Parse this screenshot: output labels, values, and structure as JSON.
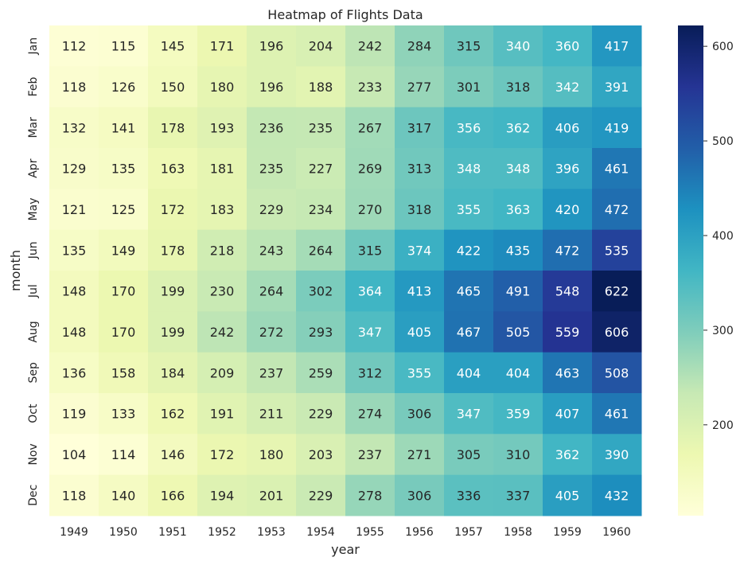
{
  "chart_data": {
    "type": "heatmap",
    "title": "Heatmap of Flights Data",
    "xlabel": "year",
    "ylabel": "month",
    "x_categories": [
      "1949",
      "1950",
      "1951",
      "1952",
      "1953",
      "1954",
      "1955",
      "1956",
      "1957",
      "1958",
      "1959",
      "1960"
    ],
    "y_categories": [
      "Jan",
      "Feb",
      "Mar",
      "Apr",
      "May",
      "Jun",
      "Jul",
      "Aug",
      "Sep",
      "Oct",
      "Nov",
      "Dec"
    ],
    "values": [
      [
        112,
        115,
        145,
        171,
        196,
        204,
        242,
        284,
        315,
        340,
        360,
        417
      ],
      [
        118,
        126,
        150,
        180,
        196,
        188,
        233,
        277,
        301,
        318,
        342,
        391
      ],
      [
        132,
        141,
        178,
        193,
        236,
        235,
        267,
        317,
        356,
        362,
        406,
        419
      ],
      [
        129,
        135,
        163,
        181,
        235,
        227,
        269,
        313,
        348,
        348,
        396,
        461
      ],
      [
        121,
        125,
        172,
        183,
        229,
        234,
        270,
        318,
        355,
        363,
        420,
        472
      ],
      [
        135,
        149,
        178,
        218,
        243,
        264,
        315,
        374,
        422,
        435,
        472,
        535
      ],
      [
        148,
        170,
        199,
        230,
        264,
        302,
        364,
        413,
        465,
        491,
        548,
        622
      ],
      [
        148,
        170,
        199,
        242,
        272,
        293,
        347,
        405,
        467,
        505,
        559,
        606
      ],
      [
        136,
        158,
        184,
        209,
        237,
        259,
        312,
        355,
        404,
        404,
        463,
        508
      ],
      [
        119,
        133,
        162,
        191,
        211,
        229,
        274,
        306,
        347,
        359,
        407,
        461
      ],
      [
        104,
        114,
        146,
        172,
        180,
        203,
        237,
        271,
        305,
        310,
        362,
        390
      ],
      [
        118,
        140,
        166,
        194,
        201,
        229,
        278,
        306,
        336,
        337,
        405,
        432
      ]
    ],
    "colormap": "YlGnBu",
    "colorbar": {
      "min": 104,
      "max": 622,
      "ticks": [
        200,
        300,
        400,
        500,
        600
      ]
    },
    "annotations": true,
    "grid": false
  }
}
